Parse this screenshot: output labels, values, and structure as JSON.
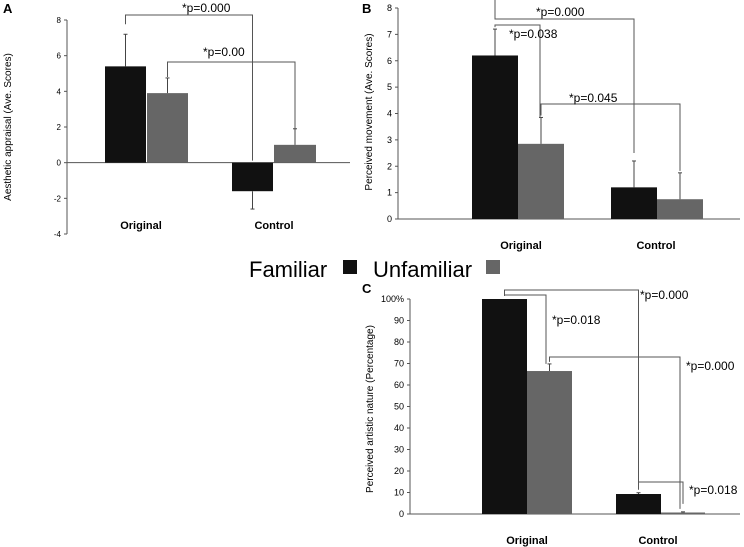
{
  "colors": {
    "familiar": "#111111",
    "unfamiliar": "#666666",
    "axis": "#555555",
    "bracket": "#555555"
  },
  "legend": {
    "familiar_label": "Familiar",
    "unfamiliar_label": "Unfamiliar"
  },
  "chart_data": [
    {
      "panel": "A",
      "type": "bar",
      "ylabel": "Aesthetic appraisal (Ave. Scores)",
      "ylim": [
        -4,
        8
      ],
      "yticks": [
        "-4",
        "-2",
        "0",
        "2",
        "4",
        "6",
        "8"
      ],
      "categories": [
        "Original",
        "Control"
      ],
      "series": [
        {
          "name": "Familiar",
          "values": [
            5.4,
            -1.6
          ],
          "errors": [
            1.8,
            1.0
          ]
        },
        {
          "name": "Unfamiliar",
          "values": [
            3.9,
            1.0
          ],
          "errors": [
            0.85,
            0.9
          ]
        }
      ],
      "annotations": [
        {
          "text": "*p=0.000",
          "from": "Original-Familiar",
          "to": "Control-Familiar"
        },
        {
          "text": "*p=0.00",
          "from": "Original-Unfamiliar",
          "to": "Control-Unfamiliar"
        }
      ]
    },
    {
      "panel": "B",
      "type": "bar",
      "ylabel": "Perceived movement (Ave. Scores)",
      "ylim": [
        0,
        8
      ],
      "yticks": [
        "0",
        "1",
        "2",
        "3",
        "4",
        "5",
        "6",
        "7",
        "8"
      ],
      "categories": [
        "Original",
        "Control"
      ],
      "series": [
        {
          "name": "Familiar",
          "values": [
            6.2,
            1.2
          ],
          "errors": [
            1.0,
            1.0
          ]
        },
        {
          "name": "Unfamiliar",
          "values": [
            2.85,
            0.75
          ],
          "errors": [
            1.0,
            1.0
          ]
        }
      ],
      "annotations": [
        {
          "text": "*p=0.000",
          "from": "Original-Familiar",
          "to": "Control-Familiar"
        },
        {
          "text": "*p=0.038",
          "from": "Original-Familiar",
          "to": "Original-Unfamiliar"
        },
        {
          "text": "*p=0.045",
          "from": "Original-Unfamiliar",
          "to": "Control-Unfamiliar"
        }
      ]
    },
    {
      "panel": "C",
      "type": "bar",
      "ylabel": "Perceived artistic nature (Percentage)",
      "ylim": [
        0,
        100
      ],
      "yticks": [
        "0",
        "10",
        "20",
        "30",
        "40",
        "50",
        "60",
        "70",
        "80",
        "90",
        "100%"
      ],
      "categories": [
        "Original",
        "Control"
      ],
      "series": [
        {
          "name": "Familiar",
          "values": [
            100,
            9.3
          ],
          "errors": [
            0,
            0.6
          ]
        },
        {
          "name": "Unfamiliar",
          "values": [
            66.5,
            0.7
          ],
          "errors": [
            3.3,
            0.3
          ]
        }
      ],
      "annotations": [
        {
          "text": "*p=0.000",
          "from": "Original-Familiar",
          "to": "Control-Familiar"
        },
        {
          "text": "*p=0.018",
          "from": "Original-Familiar",
          "to": "Original-Unfamiliar"
        },
        {
          "text": "*p=0.000",
          "from": "Original-Unfamiliar",
          "to": "Control-Unfamiliar"
        },
        {
          "text": "*p=0.018",
          "from": "Control-Familiar",
          "to": "Control-Unfamiliar"
        }
      ]
    }
  ]
}
